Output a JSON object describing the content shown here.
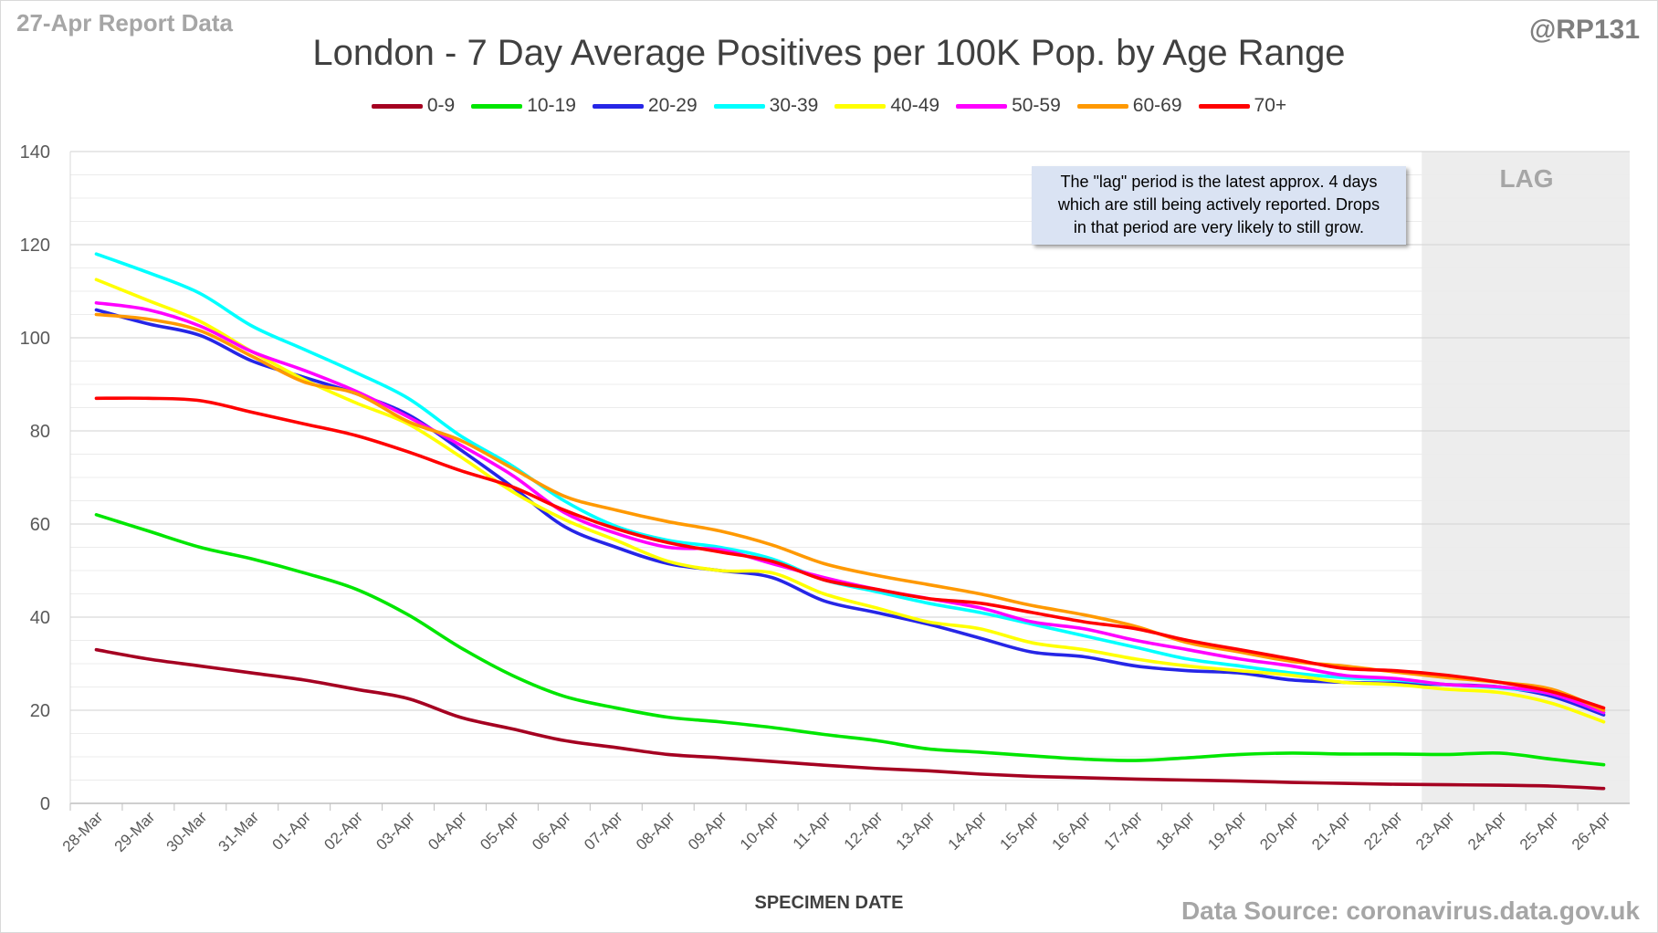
{
  "header": {
    "report": "27-Apr Report Data",
    "handle": "@RP131",
    "source": "Data Source: coronavirus.data.gov.uk"
  },
  "chart_data": {
    "type": "line",
    "title": "London - 7 Day Average Positives per 100K Pop. by Age Range",
    "xlabel": "SPECIMEN DATE",
    "ylabel": "",
    "ylim": [
      0,
      140
    ],
    "yticks": [
      0,
      20,
      40,
      60,
      80,
      100,
      120,
      140
    ],
    "grid": true,
    "legend_position": "top",
    "x": [
      "28-Mar",
      "29-Mar",
      "30-Mar",
      "31-Mar",
      "01-Apr",
      "02-Apr",
      "03-Apr",
      "04-Apr",
      "05-Apr",
      "06-Apr",
      "07-Apr",
      "08-Apr",
      "09-Apr",
      "10-Apr",
      "11-Apr",
      "12-Apr",
      "13-Apr",
      "14-Apr",
      "15-Apr",
      "16-Apr",
      "17-Apr",
      "18-Apr",
      "19-Apr",
      "20-Apr",
      "21-Apr",
      "22-Apr",
      "23-Apr",
      "24-Apr",
      "25-Apr",
      "26-Apr"
    ],
    "lag": {
      "label": "LAG",
      "start": "23-Apr",
      "end": "26-Apr",
      "note": [
        "The \"lag\" period is the latest approx. 4 days",
        "which are still being actively reported.  Drops",
        "in that period are very likely to still grow."
      ]
    },
    "series": [
      {
        "name": "0-9",
        "color": "#a50021",
        "values": [
          33,
          31,
          29.5,
          28,
          26.5,
          24.5,
          22.5,
          18.5,
          16,
          13.5,
          12,
          10.5,
          9.8,
          9,
          8.2,
          7.5,
          7,
          6.3,
          5.8,
          5.5,
          5.2,
          5,
          4.8,
          4.5,
          4.3,
          4.1,
          4,
          3.9,
          3.7,
          3.2
        ]
      },
      {
        "name": "10-19",
        "color": "#00e600",
        "values": [
          62,
          58.5,
          55,
          52.5,
          49.5,
          46,
          40.5,
          33.5,
          27.5,
          23,
          20.5,
          18.5,
          17.5,
          16.3,
          14.8,
          13.5,
          11.7,
          11,
          10.2,
          9.5,
          9.2,
          9.8,
          10.5,
          10.8,
          10.6,
          10.6,
          10.5,
          10.8,
          9.5,
          8.3
        ]
      },
      {
        "name": "20-29",
        "color": "#2626e6",
        "values": [
          106,
          103,
          100.5,
          95,
          91.5,
          88,
          83.5,
          76,
          68,
          59.5,
          55,
          51.5,
          50,
          48.5,
          43.5,
          41,
          38.5,
          35.5,
          32.5,
          31.5,
          29.5,
          28.5,
          28,
          26.5,
          26,
          25.8,
          25.5,
          25,
          23,
          19
        ]
      },
      {
        "name": "30-39",
        "color": "#00ffff",
        "values": [
          118,
          114,
          109.5,
          102.5,
          97.5,
          92.5,
          87,
          79,
          72.5,
          65,
          59.5,
          56.5,
          55,
          52.5,
          48,
          45.5,
          43,
          41,
          38.5,
          36,
          33.5,
          31,
          29.5,
          28,
          27,
          26.5,
          25.5,
          24.8,
          23.5,
          19.5
        ]
      },
      {
        "name": "40-49",
        "color": "#ffff00",
        "values": [
          112.5,
          108,
          103.5,
          97,
          91,
          86,
          81.5,
          74.5,
          67,
          61,
          56.5,
          52,
          50,
          49.5,
          45,
          42,
          39,
          37.5,
          34.5,
          33,
          31,
          29.5,
          28.5,
          27.5,
          26,
          25.5,
          24.5,
          23.8,
          21.5,
          17.5
        ]
      },
      {
        "name": "50-59",
        "color": "#ff00ff",
        "values": [
          107.5,
          106,
          102.5,
          97,
          93,
          88.5,
          83,
          77,
          70.5,
          62.5,
          58,
          55,
          54.5,
          51.5,
          48.5,
          46,
          44,
          42,
          39,
          37.5,
          35,
          33,
          31,
          29.5,
          27.5,
          26.8,
          25.5,
          25,
          23.5,
          19.5
        ]
      },
      {
        "name": "60-69",
        "color": "#ff9900",
        "values": [
          105,
          104,
          101.5,
          96,
          90.5,
          88,
          82,
          78,
          72,
          66,
          63,
          60.5,
          58.5,
          55.5,
          51.5,
          49,
          47,
          45,
          42.5,
          40.5,
          38,
          34.5,
          32.5,
          30.5,
          29.5,
          28.2,
          27,
          26,
          24.5,
          20
        ]
      },
      {
        "name": "70+",
        "color": "#ff0000",
        "values": [
          87,
          87,
          86.5,
          84,
          81.5,
          79,
          75.5,
          71.5,
          68,
          63,
          59,
          56,
          54,
          52,
          48,
          46,
          44,
          43,
          41,
          39,
          37.5,
          35,
          33,
          31,
          29,
          28.5,
          27.5,
          26,
          24,
          20.5
        ]
      }
    ]
  }
}
